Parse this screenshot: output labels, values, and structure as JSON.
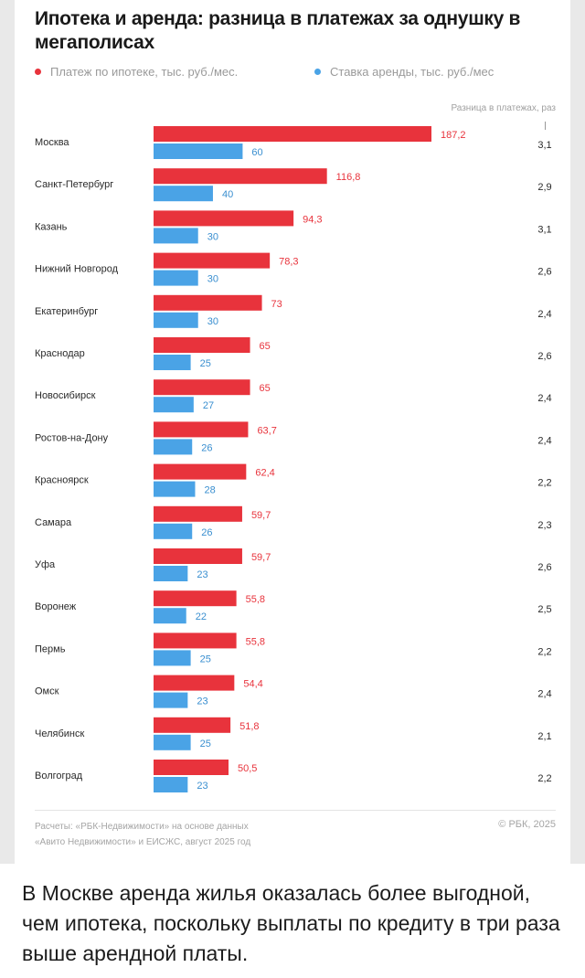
{
  "title": "Ипотека и аренда: разница в платежах за однушку в мегаполисах",
  "legend": {
    "mortgage": "Платеж по ипотеке, тыс. руб./мес.",
    "rent": "Ставка аренды, тыс. руб./мес"
  },
  "ratio_header": "Разница в платежах, раз",
  "source_lines": [
    "Расчеты: «РБК-Недвижимости» на основе данных",
    "«Авито Недвижимости» и ЕИСЖС, август 2025 год"
  ],
  "copyright": "© РБК, 2025",
  "caption": "В Москве аренда жилья оказалась более выгодной, чем ипотека, поскольку выплаты по кредиту в три раза выше арендной платы.",
  "colors": {
    "mortgage": "#e8333c",
    "rent": "#4aa3e6"
  },
  "chart_data": {
    "type": "bar",
    "orientation": "horizontal",
    "categories": [
      "Москва",
      "Санкт-Петербург",
      "Казань",
      "Нижний Новгород",
      "Екатеринбург",
      "Краснодар",
      "Новосибирск",
      "Ростов-на-Дону",
      "Красноярск",
      "Самара",
      "Уфа",
      "Воронеж",
      "Пермь",
      "Омск",
      "Челябинск",
      "Волгоград"
    ],
    "series": [
      {
        "name": "Платеж по ипотеке, тыс. руб./мес.",
        "values": [
          187.2,
          116.8,
          94.3,
          78.3,
          73,
          65,
          65,
          63.7,
          62.4,
          59.7,
          59.7,
          55.8,
          55.8,
          54.4,
          51.8,
          50.5
        ],
        "labels": [
          "187,2",
          "116,8",
          "94,3",
          "78,3",
          "73",
          "65",
          "65",
          "63,7",
          "62,4",
          "59,7",
          "59,7",
          "55,8",
          "55,8",
          "54,4",
          "51,8",
          "50,5"
        ]
      },
      {
        "name": "Ставка аренды, тыс. руб./мес",
        "values": [
          60,
          40,
          30,
          30,
          30,
          25,
          27,
          26,
          28,
          26,
          23,
          22,
          25,
          23,
          25,
          23
        ],
        "labels": [
          "60",
          "40",
          "30",
          "30",
          "30",
          "25",
          "27",
          "26",
          "28",
          "26",
          "23",
          "22",
          "25",
          "23",
          "25",
          "23"
        ]
      }
    ],
    "ratio": {
      "name": "Разница в платежах, раз",
      "values": [
        3.1,
        2.9,
        3.1,
        2.6,
        2.4,
        2.6,
        2.4,
        2.4,
        2.2,
        2.3,
        2.6,
        2.5,
        2.2,
        2.4,
        2.1,
        2.2
      ],
      "labels": [
        "3,1",
        "2,9",
        "3,1",
        "2,6",
        "2,4",
        "2,6",
        "2,4",
        "2,4",
        "2,2",
        "2,3",
        "2,6",
        "2,5",
        "2,2",
        "2,4",
        "2,1",
        "2,2"
      ]
    },
    "xlim": [
      0,
      187.2
    ],
    "grid": false
  }
}
